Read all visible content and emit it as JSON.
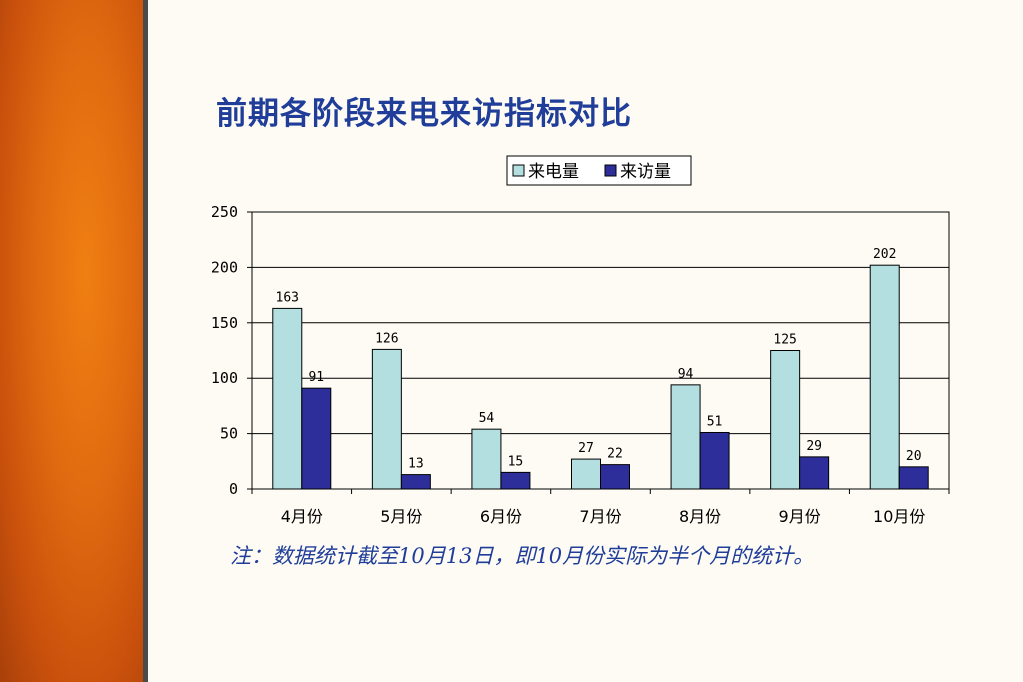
{
  "slide": {
    "title": "前期各阶段来电来访指标对比",
    "footnote": "注：数据统计截至10月13日，即10月份实际为半个月的统计。"
  },
  "colors": {
    "series1": "#b4dfe1",
    "series2": "#2e2e9a",
    "title": "#1f3d99",
    "grid": "#000000"
  },
  "chart_data": {
    "type": "bar",
    "categories": [
      "4月份",
      "5月份",
      "6月份",
      "7月份",
      "8月份",
      "9月份",
      "10月份"
    ],
    "series": [
      {
        "name": "来电量",
        "values": [
          163,
          126,
          54,
          27,
          94,
          125,
          202
        ]
      },
      {
        "name": "来访量",
        "values": [
          91,
          13,
          15,
          22,
          51,
          29,
          20
        ]
      }
    ],
    "ylim": [
      0,
      250
    ],
    "yticks": [
      0,
      50,
      100,
      150,
      200,
      250
    ],
    "grid": true,
    "legend": "top-center",
    "data_labels": true
  }
}
